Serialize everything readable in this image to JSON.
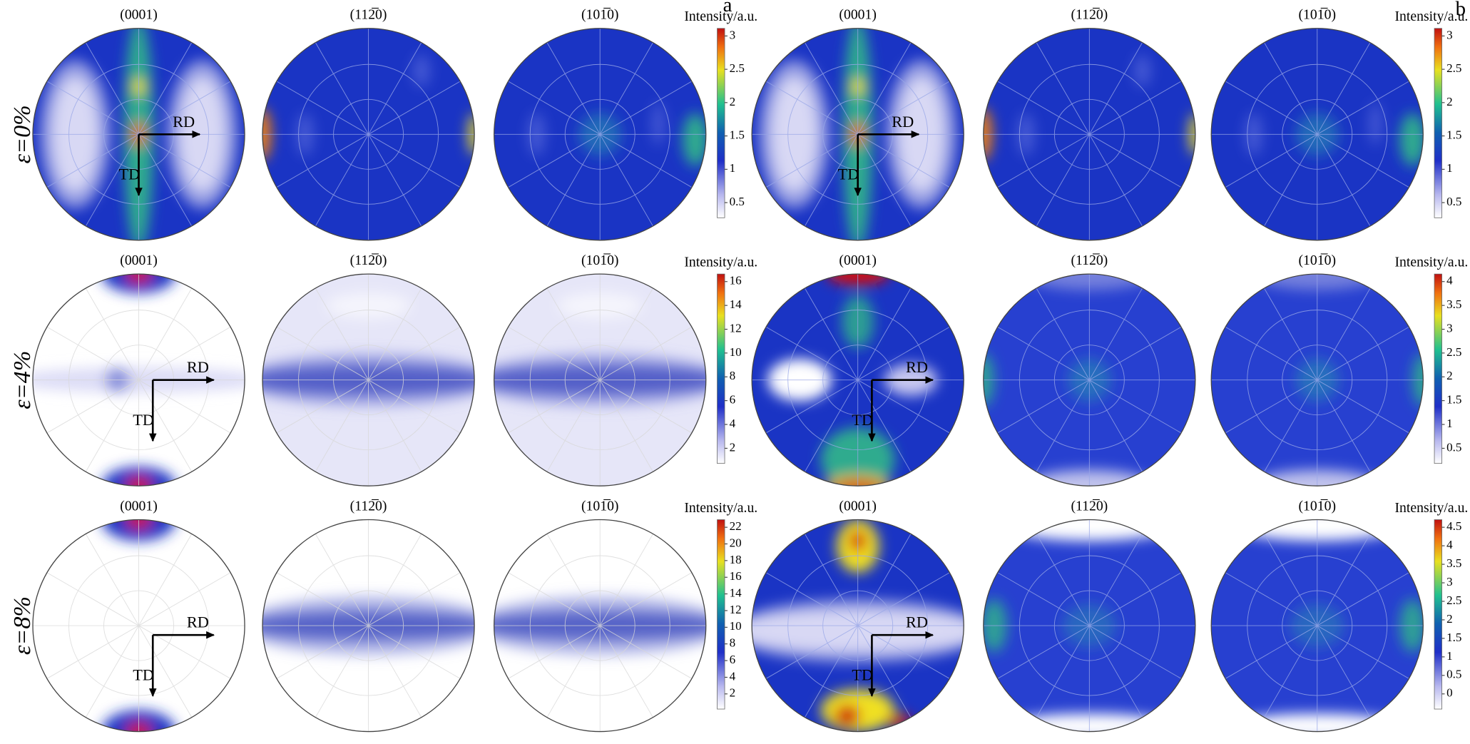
{
  "figure_labels": [
    "a",
    "b"
  ],
  "legend_title": "Intensity/a.u.",
  "pole_titles": [
    "(0001)",
    "(112̅0)",
    "(101̅0)"
  ],
  "direction_labels": {
    "rd": "RD",
    "td": "TD"
  },
  "rows": [
    {
      "strain": "ε=0%",
      "groups": [
        {
          "ticks": [
            0.5,
            1,
            1.5,
            2,
            2.5,
            3
          ]
        },
        {
          "ticks": [
            0.5,
            1,
            1.5,
            2,
            2.5,
            3
          ]
        }
      ]
    },
    {
      "strain": "ε=4%",
      "groups": [
        {
          "ticks": [
            2,
            4,
            6,
            8,
            10,
            12,
            14,
            16
          ]
        },
        {
          "ticks": [
            0.5,
            1,
            1.5,
            2,
            2.5,
            3,
            3.5,
            4
          ]
        }
      ]
    },
    {
      "strain": "ε=8%",
      "groups": [
        {
          "ticks": [
            2,
            4,
            6,
            8,
            10,
            12,
            14,
            16,
            18,
            20,
            22
          ]
        },
        {
          "ticks": [
            0,
            0.5,
            1,
            1.5,
            2,
            2.5,
            3,
            3.5,
            4,
            4.5
          ]
        }
      ]
    }
  ]
}
